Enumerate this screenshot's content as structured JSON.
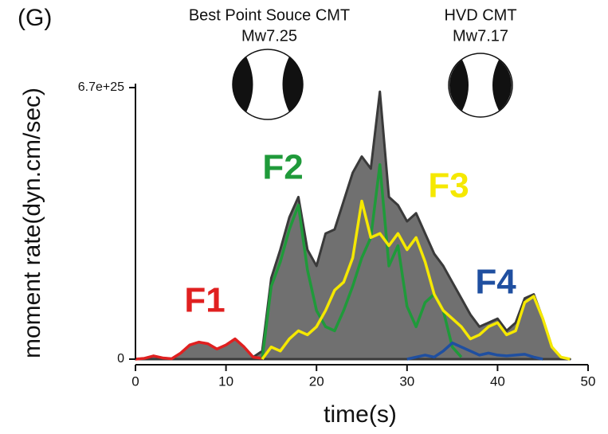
{
  "chart_data": {
    "type": "line",
    "panel_label": "(G)",
    "annotations": [
      "Best Point Souce CMT",
      "Mw7.25",
      "HVD CMT",
      "Mw7.17"
    ],
    "xlabel": "time(s)",
    "ylabel": "moment rate(dyn.cm/sec)",
    "xlim": [
      0,
      50
    ],
    "xticks": [
      0,
      10,
      20,
      30,
      40,
      50
    ],
    "ylim": [
      0,
      6.7e+25
    ],
    "yticks": [
      0,
      {
        "value": 6.7e+25,
        "label": "6.7e+25"
      }
    ],
    "x": [
      0,
      1,
      2,
      3,
      4,
      5,
      6,
      7,
      8,
      9,
      10,
      11,
      12,
      13,
      14,
      15,
      16,
      17,
      18,
      19,
      20,
      21,
      22,
      23,
      24,
      25,
      26,
      27,
      28,
      29,
      30,
      31,
      32,
      33,
      34,
      35,
      36,
      37,
      38,
      39,
      40,
      41,
      42,
      43,
      44,
      45,
      46,
      47,
      48
    ],
    "total": {
      "color": "#707070",
      "values": [
        0,
        2e+23,
        8e+23,
        3e+23,
        1e+23,
        1.5e+24,
        3.5e+24,
        4.2e+24,
        3.8e+24,
        2.5e+24,
        3.5e+24,
        5e+24,
        3e+24,
        5e+23,
        2e+24,
        2e+25,
        2.7e+25,
        3.5e+25,
        4e+25,
        2.7e+25,
        2.3e+25,
        3.1e+25,
        3.2e+25,
        3.9e+25,
        4.6e+25,
        5e+25,
        4.7e+25,
        6.6e+25,
        4e+25,
        3.8e+25,
        3.4e+25,
        3.6e+25,
        3.1e+25,
        2.6e+25,
        2.3e+25,
        1.9e+25,
        1.5e+25,
        1.1e+25,
        8e+24,
        9e+24,
        1e+25,
        7e+24,
        9e+24,
        1.5e+25,
        1.6e+25,
        1e+25,
        3e+24,
        5e+23,
        0
      ]
    },
    "series": [
      {
        "name": "F1",
        "color": "#e02020",
        "values": [
          0,
          2e+23,
          8e+23,
          3e+23,
          1e+23,
          1.5e+24,
          3.5e+24,
          4.2e+24,
          3.8e+24,
          2.5e+24,
          3.5e+24,
          5e+24,
          3e+24,
          5e+23,
          2e+23,
          null,
          null,
          null,
          null,
          null,
          null,
          null,
          null,
          null,
          null,
          null,
          null,
          null,
          null,
          null,
          null,
          null,
          null,
          null,
          null,
          null,
          null,
          null,
          null,
          null,
          null,
          null,
          null,
          null,
          null,
          null,
          null,
          null,
          null
        ]
      },
      {
        "name": "F2",
        "color": "#1f9a3a",
        "values": [
          null,
          null,
          null,
          null,
          null,
          null,
          null,
          null,
          null,
          null,
          null,
          null,
          null,
          null,
          0,
          1.8e+25,
          2.4e+25,
          3.2e+25,
          3.8e+25,
          2.2e+25,
          1.2e+25,
          8e+24,
          7e+24,
          1.2e+25,
          1.8e+25,
          2.5e+25,
          3e+25,
          4.8e+25,
          2.3e+25,
          2.8e+25,
          1.3e+25,
          8e+24,
          1.4e+25,
          1.6e+25,
          1.2e+25,
          3e+24,
          5e+23,
          null,
          null,
          null,
          null,
          null,
          null,
          null,
          null,
          null,
          null,
          null,
          null
        ]
      },
      {
        "name": "F3",
        "color": "#f5e800",
        "values": [
          null,
          null,
          null,
          null,
          null,
          null,
          null,
          null,
          null,
          null,
          null,
          null,
          null,
          null,
          0,
          3e+24,
          2e+24,
          5e+24,
          7e+24,
          6e+24,
          8e+24,
          1.2e+25,
          1.7e+25,
          1.9e+25,
          2.5e+25,
          3.9e+25,
          3e+25,
          3.1e+25,
          2.8e+25,
          3.1e+25,
          2.7e+25,
          3e+25,
          2.4e+25,
          1.6e+25,
          1.2e+25,
          1e+25,
          8e+24,
          5e+24,
          6e+24,
          8e+24,
          9e+24,
          6e+24,
          7e+24,
          1.4e+25,
          1.55e+25,
          1e+25,
          3e+24,
          5e+23,
          0
        ]
      },
      {
        "name": "F4",
        "color": "#1f4fa0",
        "values": [
          null,
          null,
          null,
          null,
          null,
          null,
          null,
          null,
          null,
          null,
          null,
          null,
          null,
          null,
          null,
          null,
          null,
          null,
          null,
          null,
          null,
          null,
          null,
          null,
          null,
          null,
          null,
          null,
          null,
          null,
          0,
          5e+23,
          1e+24,
          5e+23,
          2e+24,
          4e+24,
          3e+24,
          2e+24,
          1e+24,
          1.5e+24,
          1e+24,
          8e+23,
          1e+24,
          1.2e+24,
          5e+23,
          0,
          null,
          null,
          null
        ]
      }
    ]
  }
}
